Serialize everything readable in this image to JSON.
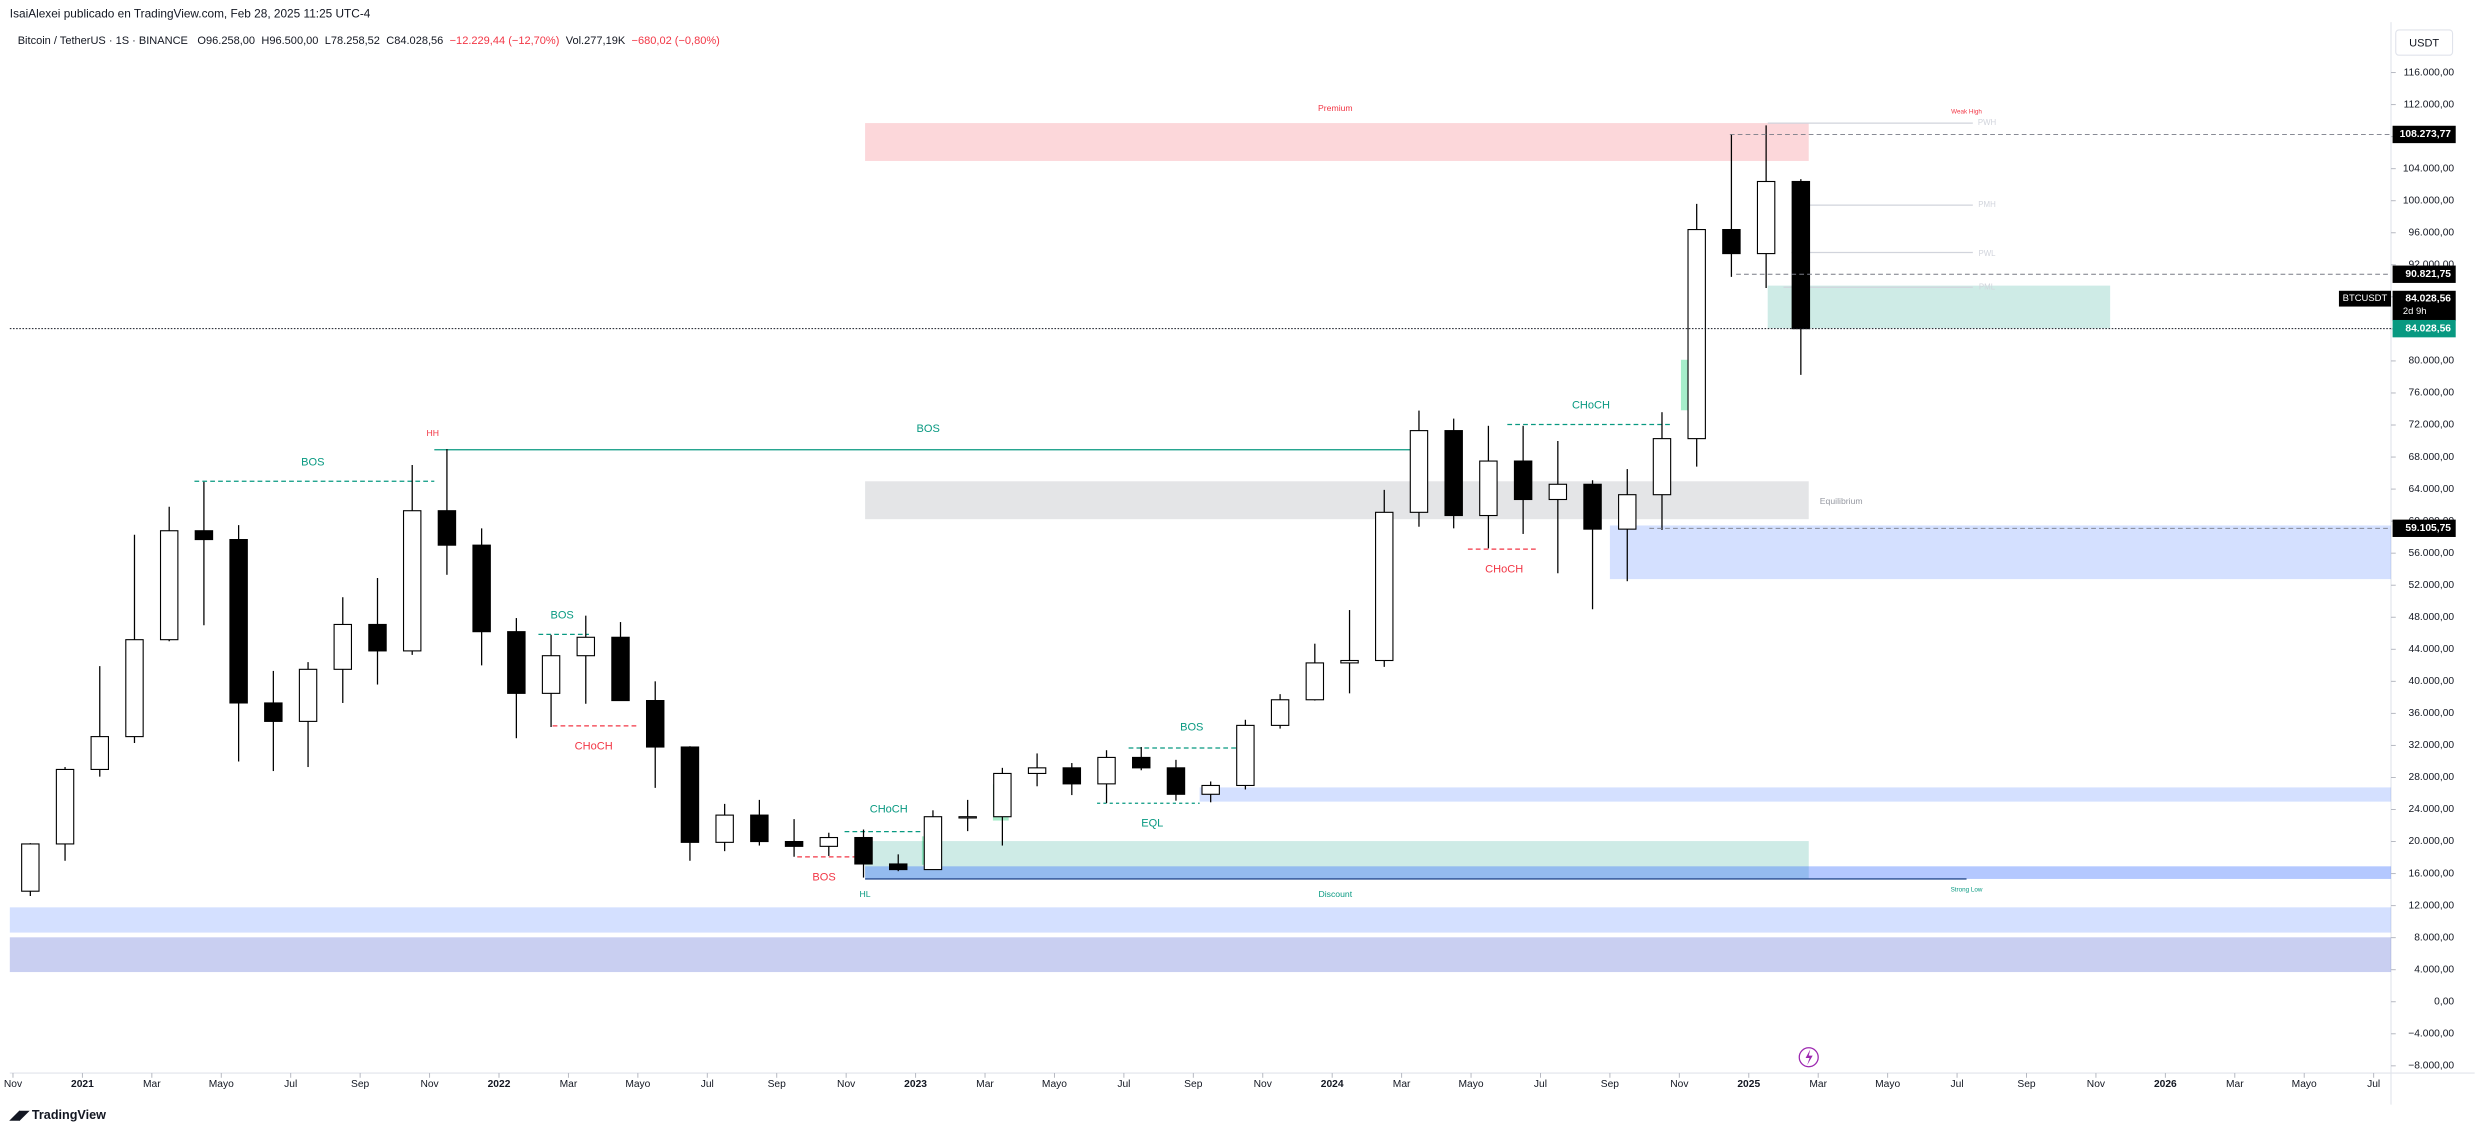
{
  "header": {
    "publisher": "IsaiAlexei publicado en TradingView.com, Feb 28, 2025 11:25 UTC-4",
    "legend": [
      "Bitcoin / TetherUS · 1S · BINANCE",
      "O96.258,00",
      "H96.500,00",
      "L78.258,52",
      "C84.028,56",
      "−12.229,44 (−12,70%)",
      "Vol.277,19K",
      "−680,02 (−0,80%)"
    ],
    "currency": "USDT",
    "footer": "TradingView"
  },
  "annotations": [
    "Premium",
    "Weak High",
    "PWH",
    "PMH",
    "PWL",
    "PML",
    "HH",
    "BOS",
    "BOS",
    "CHoCH",
    "Equilibrium",
    "CHoCH",
    "BOS",
    "CHoCH",
    "BOS",
    "EQL",
    "CHoCH",
    "BOS",
    "HL",
    "Discount",
    "Strong Low"
  ],
  "chart_data": {
    "type": "candlestick",
    "up_color": "#ffffff",
    "down_color": "#000000",
    "border_color": "#000000",
    "grid": false,
    "x": [
      "2020-11",
      "2020-12",
      "2021-01",
      "2021-02",
      "2021-03",
      "2021-04",
      "2021-05",
      "2021-06",
      "2021-07",
      "2021-08",
      "2021-09",
      "2021-10",
      "2021-11",
      "2021-12",
      "2022-01",
      "2022-02",
      "2022-03",
      "2022-04",
      "2022-05",
      "2022-06",
      "2022-07",
      "2022-08",
      "2022-09",
      "2022-10",
      "2022-11",
      "2022-12",
      "2023-01",
      "2023-02",
      "2023-03",
      "2023-04",
      "2023-05",
      "2023-06",
      "2023-07",
      "2023-08",
      "2023-09",
      "2023-10",
      "2023-11",
      "2023-12",
      "2024-01",
      "2024-02",
      "2024-03",
      "2024-04",
      "2024-05",
      "2024-06",
      "2024-07",
      "2024-08",
      "2024-09",
      "2024-10",
      "2024-11",
      "2024-12",
      "2025-01",
      "2025-02"
    ],
    "open": [
      13800,
      19700,
      29000,
      33100,
      45200,
      58800,
      57700,
      37300,
      35000,
      41500,
      47100,
      43800,
      61300,
      57000,
      46200,
      38500,
      43200,
      45500,
      37600,
      31800,
      19900,
      23300,
      20000,
      19400,
      20500,
      17200,
      16500,
      23100,
      23100,
      28500,
      29200,
      27200,
      30500,
      29200,
      25900,
      27000,
      34500,
      37700,
      42300,
      42600,
      61100,
      71300,
      60700,
      67500,
      62700,
      64600,
      59000,
      63300,
      70300,
      96400,
      93400,
      102400
    ],
    "high": [
      19800,
      29300,
      41900,
      58300,
      61800,
      64900,
      59500,
      41300,
      42400,
      50500,
      52900,
      67000,
      69000,
      59100,
      47900,
      45800,
      48200,
      47400,
      40000,
      31900,
      24700,
      25200,
      22800,
      21100,
      21500,
      18400,
      23900,
      25200,
      29200,
      31000,
      29800,
      31400,
      31800,
      30200,
      27500,
      35200,
      38400,
      44700,
      48900,
      63900,
      73800,
      72800,
      71900,
      71900,
      70000,
      65100,
      66500,
      73600,
      99600,
      108300,
      109400,
      102700
    ],
    "low": [
      13200,
      17600,
      28100,
      32300,
      45000,
      47000,
      30000,
      28800,
      29300,
      37300,
      39600,
      43300,
      53300,
      42000,
      32900,
      34300,
      37200,
      37700,
      26700,
      17600,
      18800,
      19500,
      18100,
      18200,
      15500,
      16300,
      16500,
      21300,
      19500,
      26900,
      25800,
      24800,
      28900,
      25100,
      24900,
      26500,
      34100,
      37600,
      38500,
      41800,
      59300,
      59100,
      56600,
      58400,
      53500,
      49000,
      52500,
      58900,
      66800,
      90500,
      89100,
      78258.52
    ],
    "close": [
      19700,
      29000,
      33100,
      45200,
      58800,
      57700,
      37300,
      35000,
      41500,
      47100,
      43800,
      61300,
      57000,
      46200,
      38500,
      43200,
      45500,
      37600,
      31800,
      19900,
      23300,
      20000,
      19400,
      20500,
      17200,
      16500,
      23100,
      23100,
      28500,
      29200,
      27200,
      30500,
      29200,
      25900,
      27000,
      34500,
      37700,
      42300,
      42600,
      61100,
      71300,
      60700,
      67500,
      62700,
      64600,
      59000,
      63300,
      70300,
      96400,
      93400,
      102400,
      84028.56
    ],
    "xlim": [
      "2020-11",
      "2026-07"
    ],
    "xticks": [
      {
        "value": "2020-11",
        "label": "Nov"
      },
      {
        "value": "2021-01",
        "label": "2021"
      },
      {
        "value": "2021-03",
        "label": "Mar"
      },
      {
        "value": "2021-05",
        "label": "Mayo"
      },
      {
        "value": "2021-07",
        "label": "Jul"
      },
      {
        "value": "2021-09",
        "label": "Sep"
      },
      {
        "value": "2021-11",
        "label": "Nov"
      },
      {
        "value": "2022-01",
        "label": "2022"
      },
      {
        "value": "2022-03",
        "label": "Mar"
      },
      {
        "value": "2022-05",
        "label": "Mayo"
      },
      {
        "value": "2022-07",
        "label": "Jul"
      },
      {
        "value": "2022-09",
        "label": "Sep"
      },
      {
        "value": "2022-11",
        "label": "Nov"
      },
      {
        "value": "2023-01",
        "label": "2023"
      },
      {
        "value": "2023-03",
        "label": "Mar"
      },
      {
        "value": "2023-05",
        "label": "Mayo"
      },
      {
        "value": "2023-07",
        "label": "Jul"
      },
      {
        "value": "2023-09",
        "label": "Sep"
      },
      {
        "value": "2023-11",
        "label": "Nov"
      },
      {
        "value": "2024-01",
        "label": "2024"
      },
      {
        "value": "2024-03",
        "label": "Mar"
      },
      {
        "value": "2024-05",
        "label": "Mayo"
      },
      {
        "value": "2024-07",
        "label": "Jul"
      },
      {
        "value": "2024-09",
        "label": "Sep"
      },
      {
        "value": "2024-11",
        "label": "Nov"
      },
      {
        "value": "2025-01",
        "label": "2025"
      },
      {
        "value": "2025-03",
        "label": "Mar"
      },
      {
        "value": "2025-05",
        "label": "Mayo"
      },
      {
        "value": "2025-07",
        "label": "Jul"
      },
      {
        "value": "2025-09",
        "label": "Sep"
      },
      {
        "value": "2025-11",
        "label": "Nov"
      },
      {
        "value": "2026-01",
        "label": "2026"
      },
      {
        "value": "2026-03",
        "label": "Mar"
      },
      {
        "value": "2026-05",
        "label": "Mayo"
      },
      {
        "value": "2026-07",
        "label": "Jul"
      }
    ],
    "ylim": [
      -8900,
      122300
    ],
    "yticks": [
      {
        "value": 116000,
        "label": "116.000,00"
      },
      {
        "value": 112000,
        "label": "112.000,00"
      },
      {
        "value": 108000,
        "label": "108.000,00"
      },
      {
        "value": 104000,
        "label": "104.000,00"
      },
      {
        "value": 100000,
        "label": "100.000,00"
      },
      {
        "value": 96000,
        "label": "96.000,00"
      },
      {
        "value": 92000,
        "label": "92.000,00"
      },
      {
        "value": 88000,
        "label": "88.000,00"
      },
      {
        "value": 84000,
        "label": "84.000,00"
      },
      {
        "value": 80000,
        "label": "80.000,00"
      },
      {
        "value": 76000,
        "label": "76.000,00"
      },
      {
        "value": 72000,
        "label": "72.000,00"
      },
      {
        "value": 68000,
        "label": "68.000,00"
      },
      {
        "value": 64000,
        "label": "64.000,00"
      },
      {
        "value": 60000,
        "label": "60.000,00"
      },
      {
        "value": 56000,
        "label": "56.000,00"
      },
      {
        "value": 52000,
        "label": "52.000,00"
      },
      {
        "value": 48000,
        "label": "48.000,00"
      },
      {
        "value": 44000,
        "label": "44.000,00"
      },
      {
        "value": 40000,
        "label": "40.000,00"
      },
      {
        "value": 36000,
        "label": "36.000,00"
      },
      {
        "value": 32000,
        "label": "32.000,00"
      },
      {
        "value": 28000,
        "label": "28.000,00"
      },
      {
        "value": 24000,
        "label": "24.000,00"
      },
      {
        "value": 20000,
        "label": "20.000,00"
      },
      {
        "value": 16000,
        "label": "16.000,00"
      },
      {
        "value": 12000,
        "label": "12.000,00"
      },
      {
        "value": 8000,
        "label": "8.000,00"
      },
      {
        "value": 4000,
        "label": "4.000,00"
      },
      {
        "value": 0,
        "label": "0,00"
      },
      {
        "value": -4000,
        "label": "−4.000,00"
      },
      {
        "value": -8000,
        "label": "−8.000,00"
      }
    ],
    "price_lines": [
      {
        "value": 108273.77,
        "label": "108.273,77",
        "color": "#000000",
        "line": "dashed"
      },
      {
        "value": 90821.75,
        "label": "90.821,75",
        "color": "#000000",
        "line": "dashed"
      },
      {
        "value": 84028.56,
        "label": "84.028,56",
        "color": "#000000",
        "line": "none",
        "symbol": "BTCUSDT",
        "countdown": "2d 9h"
      },
      {
        "value": 84028.56,
        "label": "84.028,56",
        "color": "#089981",
        "line": "dotted"
      },
      {
        "value": 59105.75,
        "label": "59.105,75",
        "color": "#000000",
        "line": "dashed"
      }
    ]
  }
}
